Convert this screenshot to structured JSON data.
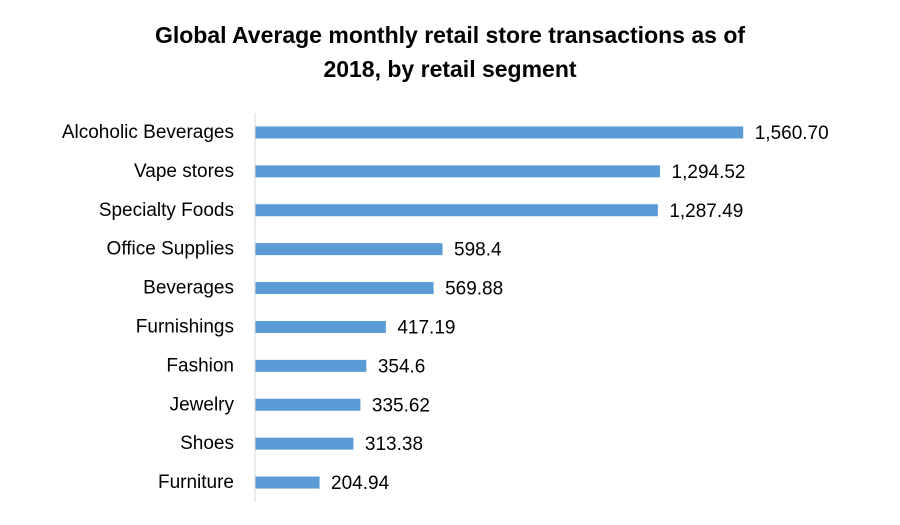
{
  "chart_data": {
    "type": "bar",
    "orientation": "horizontal",
    "title_lines": [
      "Global Average monthly retail store transactions as of",
      "2018, by retail segment"
    ],
    "categories": [
      "Alcoholic Beverages",
      "Vape stores",
      "Specialty Foods",
      "Office Supplies",
      "Beverages",
      "Furnishings",
      "Fashion",
      "Jewelry",
      "Shoes",
      "Furniture"
    ],
    "values": [
      1560.7,
      1294.52,
      1287.49,
      598.4,
      569.88,
      417.19,
      354.6,
      335.62,
      313.38,
      204.94
    ],
    "value_labels": [
      "1,560.70",
      "1,294.52",
      "1,287.49",
      "598.4",
      "569.88",
      "417.19",
      "354.6",
      "335.62",
      "313.38",
      "204.94"
    ],
    "xlim": [
      0,
      1600
    ],
    "grid": false,
    "legend": "none",
    "bar_color": "#5B9BD5",
    "axis_color": "#D9D9D9"
  }
}
